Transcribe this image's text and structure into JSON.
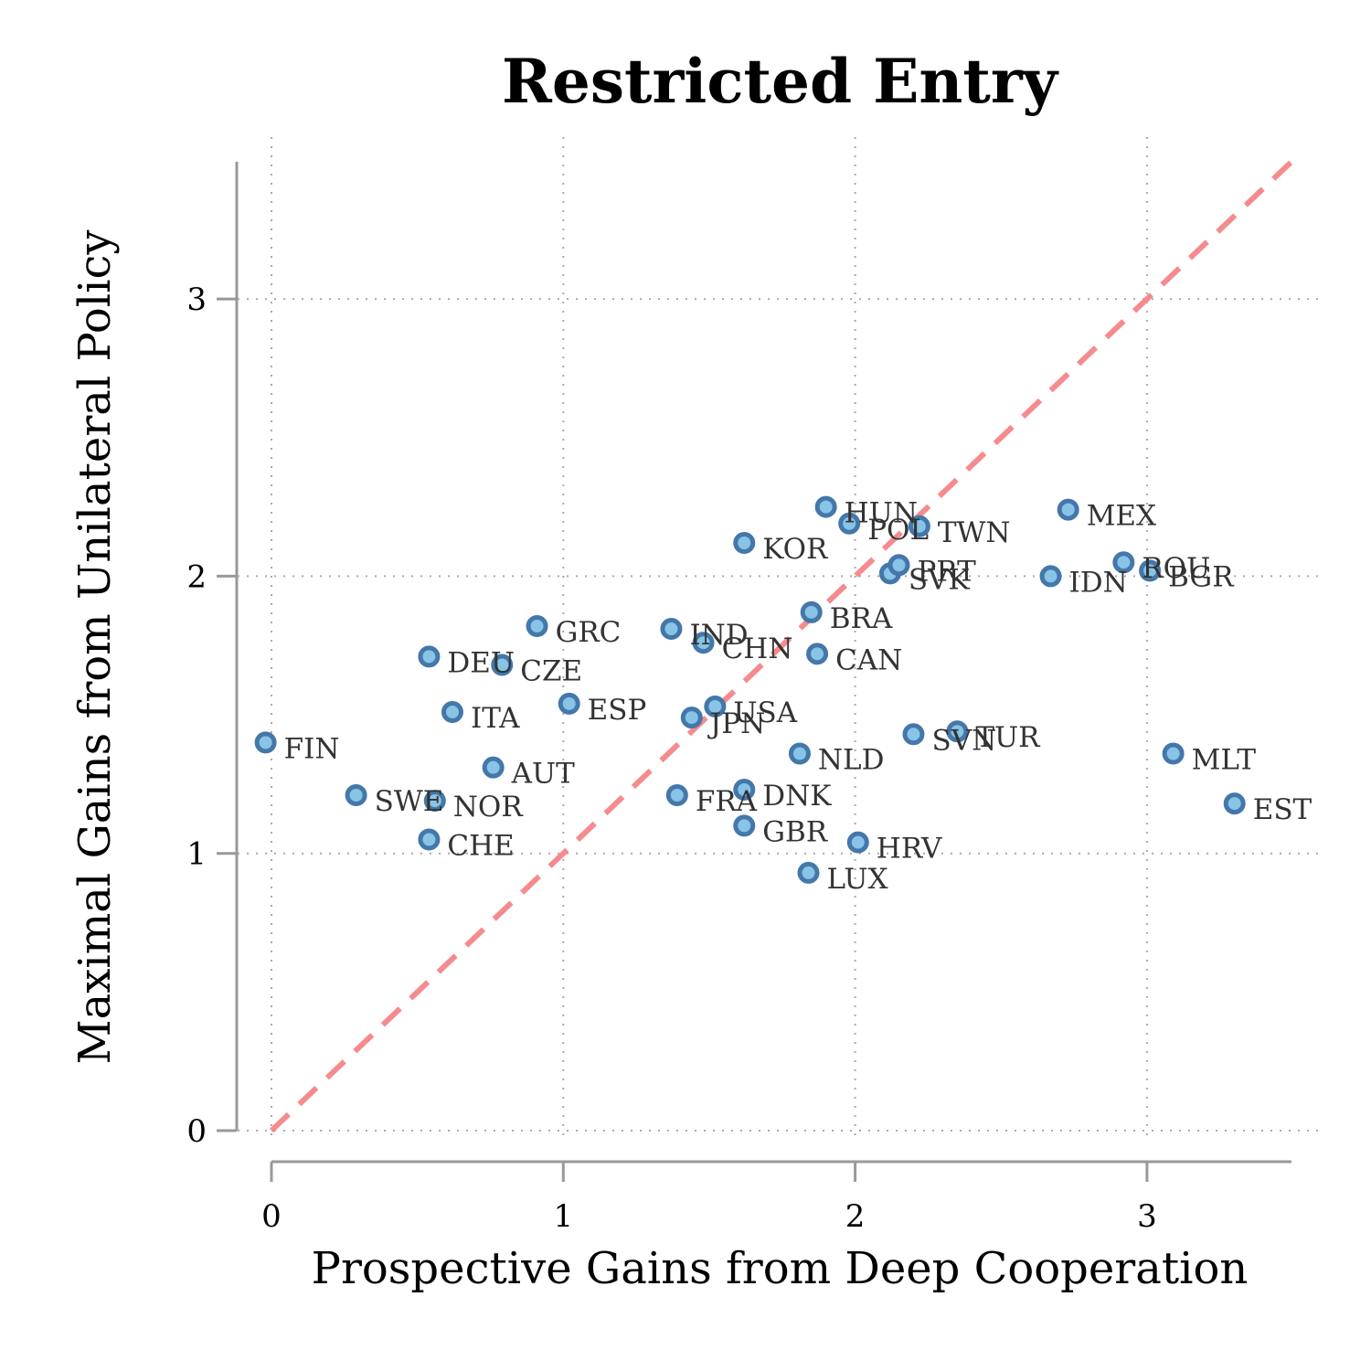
{
  "chart_data": {
    "type": "scatter",
    "title": "Restricted Entry",
    "xlabel": "Prospective Gains from Deep Cooperation",
    "ylabel": "Maximal Gains from Unilateral Policy",
    "xlim": [
      -0.12,
      3.5
    ],
    "ylim": [
      -0.1,
      3.5
    ],
    "xticks": [
      0,
      1,
      2,
      3
    ],
    "yticks": [
      0,
      1,
      2,
      3
    ],
    "grid": true,
    "reference_line": {
      "type": "identity",
      "style": "dashed",
      "color": "#f58b8e"
    },
    "points": [
      {
        "label": "FIN",
        "x": -0.02,
        "y": 1.4
      },
      {
        "label": "SWE",
        "x": 0.29,
        "y": 1.21
      },
      {
        "label": "NOR",
        "x": 0.56,
        "y": 1.19
      },
      {
        "label": "CHE",
        "x": 0.54,
        "y": 1.05
      },
      {
        "label": "DEU",
        "x": 0.54,
        "y": 1.71
      },
      {
        "label": "CZE",
        "x": 0.79,
        "y": 1.68
      },
      {
        "label": "ITA",
        "x": 0.62,
        "y": 1.51
      },
      {
        "label": "AUT",
        "x": 0.76,
        "y": 1.31
      },
      {
        "label": "GRC",
        "x": 0.91,
        "y": 1.82
      },
      {
        "label": "ESP",
        "x": 1.02,
        "y": 1.54
      },
      {
        "label": "IND",
        "x": 1.37,
        "y": 1.81
      },
      {
        "label": "CHN",
        "x": 1.48,
        "y": 1.76
      },
      {
        "label": "JPN",
        "x": 1.44,
        "y": 1.49
      },
      {
        "label": "USA",
        "x": 1.52,
        "y": 1.53
      },
      {
        "label": "FRA",
        "x": 1.39,
        "y": 1.21
      },
      {
        "label": "DNK",
        "x": 1.62,
        "y": 1.23
      },
      {
        "label": "GBR",
        "x": 1.62,
        "y": 1.1
      },
      {
        "label": "KOR",
        "x": 1.62,
        "y": 2.12
      },
      {
        "label": "NLD",
        "x": 1.81,
        "y": 1.36
      },
      {
        "label": "LUX",
        "x": 1.84,
        "y": 0.93
      },
      {
        "label": "BRA",
        "x": 1.85,
        "y": 1.87
      },
      {
        "label": "CAN",
        "x": 1.87,
        "y": 1.72
      },
      {
        "label": "HUN",
        "x": 1.9,
        "y": 2.25
      },
      {
        "label": "POL",
        "x": 1.98,
        "y": 2.19
      },
      {
        "label": "HRV",
        "x": 2.01,
        "y": 1.04
      },
      {
        "label": "SVK",
        "x": 2.12,
        "y": 2.01
      },
      {
        "label": "PRT",
        "x": 2.15,
        "y": 2.04
      },
      {
        "label": "SVN",
        "x": 2.2,
        "y": 1.43
      },
      {
        "label": "TWN",
        "x": 2.22,
        "y": 2.18
      },
      {
        "label": "TUR",
        "x": 2.35,
        "y": 1.44
      },
      {
        "label": "IDN",
        "x": 2.67,
        "y": 2.0
      },
      {
        "label": "MEX",
        "x": 2.73,
        "y": 2.24
      },
      {
        "label": "ROU",
        "x": 2.92,
        "y": 2.05
      },
      {
        "label": "BGR",
        "x": 3.01,
        "y": 2.02
      },
      {
        "label": "MLT",
        "x": 3.09,
        "y": 1.36
      },
      {
        "label": "EST",
        "x": 3.3,
        "y": 1.18
      }
    ],
    "colors": {
      "point_fill": "#87c4e6",
      "point_stroke": "#4477aa",
      "reference_line": "#f58b8e"
    }
  }
}
